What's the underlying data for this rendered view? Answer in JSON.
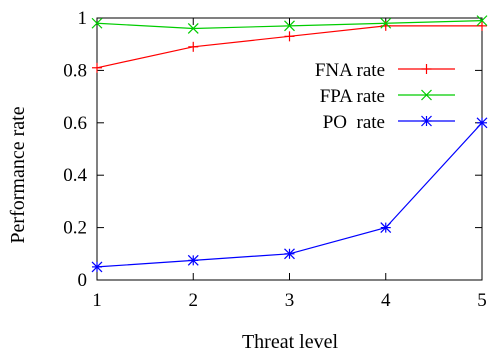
{
  "chart_data": {
    "type": "line",
    "x": [
      1,
      2,
      3,
      4,
      5
    ],
    "xlabel": "Threat level",
    "ylabel": "Performance rate",
    "xlim": [
      1,
      5
    ],
    "ylim": [
      0,
      1
    ],
    "xticks": [
      1,
      2,
      3,
      4,
      5
    ],
    "yticks": [
      0,
      0.2,
      0.4,
      0.6,
      0.8,
      1
    ],
    "xtick_labels": [
      "1",
      "2",
      "3",
      "4",
      "5"
    ],
    "ytick_labels": [
      "0",
      "0.2",
      "0.4",
      "0.6",
      "0.8",
      "1"
    ],
    "grid": false,
    "legend_position": "top-right",
    "series": [
      {
        "name": "FNA rate",
        "values": [
          0.81,
          0.89,
          0.93,
          0.97,
          0.97
        ],
        "color": "#ff0000",
        "marker": "plus"
      },
      {
        "name": "FPA rate",
        "values": [
          0.98,
          0.96,
          0.97,
          0.98,
          0.99
        ],
        "color": "#00cc00",
        "marker": "cross"
      },
      {
        "name": "PO  rate",
        "values": [
          0.05,
          0.075,
          0.1,
          0.2,
          0.6
        ],
        "color": "#0000ff",
        "marker": "star"
      }
    ]
  }
}
